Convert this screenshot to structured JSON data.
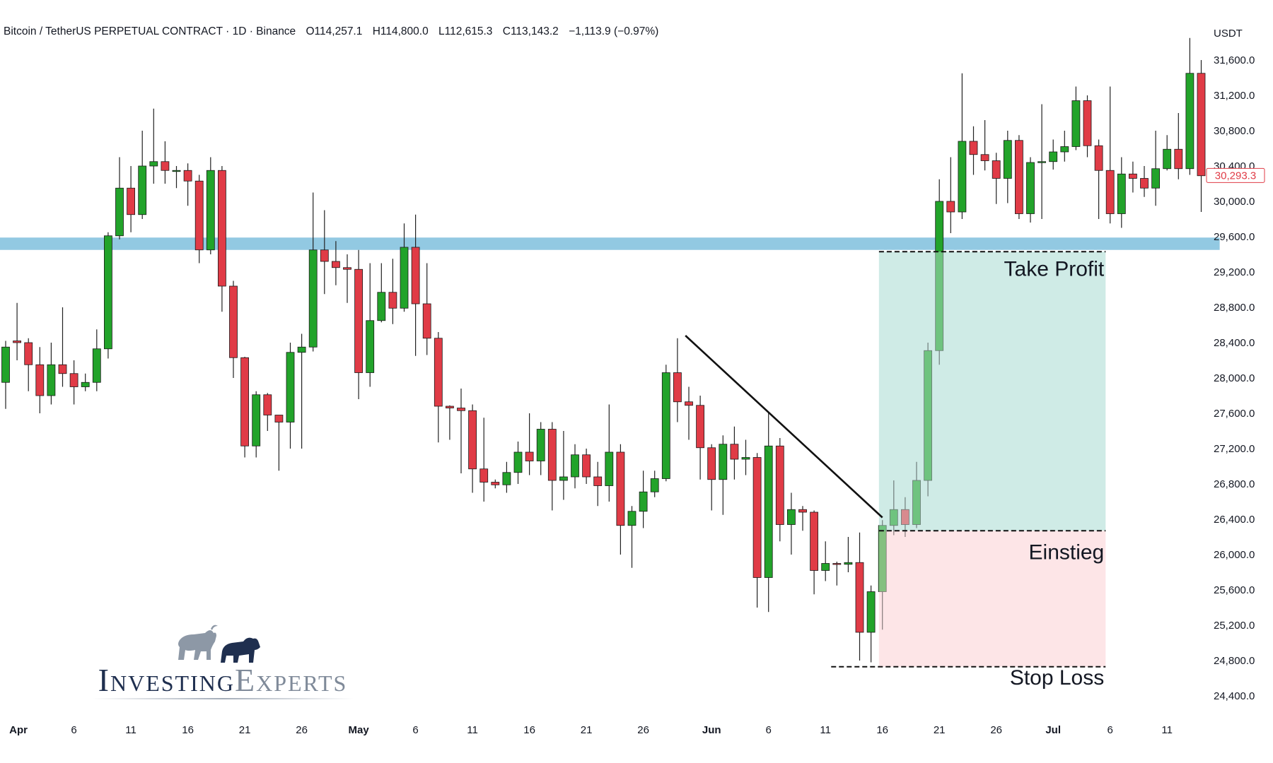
{
  "header": {
    "symbol": "Bitcoin / TetherUS PERPETUAL CONTRACT · 1D · Binance",
    "open": "O114,257.1",
    "high": "H114,800.0",
    "low": "L112,615.3",
    "close": "C113,143.2",
    "change": "−1,113.9 (−0.97%)"
  },
  "logo": {
    "word1": "Investing",
    "word2": "Experts",
    "icon": "bull-and-bear-icon"
  },
  "colors": {
    "up": "#22a32a",
    "down": "#e03b46",
    "support": "#7fc0dd",
    "target": "#cfece6",
    "risk": "#fde5e7",
    "price_label": "#e03b46"
  },
  "chart_data": {
    "type": "candlestick",
    "y_unit": "USDT",
    "ylim": [
      24200,
      31900
    ],
    "y_ticks": [
      "31,600.0",
      "31,200.0",
      "30,800.0",
      "30,400.0",
      "30,000.0",
      "29,600.0",
      "29,200.0",
      "28,800.0",
      "28,400.0",
      "28,000.0",
      "27,600.0",
      "27,200.0",
      "26,800.0",
      "26,400.0",
      "26,000.0",
      "25,600.0",
      "25,200.0",
      "24,800.0",
      "24,400.0"
    ],
    "y_tick_values": [
      31600,
      31200,
      30800,
      30400,
      30000,
      29600,
      29200,
      28800,
      28400,
      28000,
      27600,
      27200,
      26800,
      26400,
      26000,
      25600,
      25200,
      24800,
      24400
    ],
    "x_labels": [
      {
        "label": "Apr",
        "day": 1
      },
      {
        "label": "6",
        "day": 6
      },
      {
        "label": "11",
        "day": 11
      },
      {
        "label": "16",
        "day": 16
      },
      {
        "label": "21",
        "day": 21
      },
      {
        "label": "26",
        "day": 26
      },
      {
        "label": "May",
        "day": 31
      },
      {
        "label": "6",
        "day": 36
      },
      {
        "label": "11",
        "day": 41
      },
      {
        "label": "16",
        "day": 46
      },
      {
        "label": "21",
        "day": 51
      },
      {
        "label": "26",
        "day": 56
      },
      {
        "label": "Jun",
        "day": 62
      },
      {
        "label": "6",
        "day": 67
      },
      {
        "label": "11",
        "day": 72
      },
      {
        "label": "16",
        "day": 77
      },
      {
        "label": "21",
        "day": 82
      },
      {
        "label": "26",
        "day": 87
      },
      {
        "label": "Jul",
        "day": 92
      },
      {
        "label": "6",
        "day": 97
      },
      {
        "label": "11",
        "day": 102
      }
    ],
    "candles": [
      [
        27950,
        28350,
        27650,
        28420
      ],
      [
        28420,
        28400,
        28200,
        28850
      ],
      [
        28400,
        28150,
        27850,
        28450
      ],
      [
        28150,
        27800,
        27600,
        28350
      ],
      [
        27800,
        28150,
        27700,
        28400
      ],
      [
        28150,
        28050,
        27900,
        28800
      ],
      [
        28050,
        27900,
        27700,
        28200
      ],
      [
        27900,
        27950,
        27850,
        28050
      ],
      [
        27950,
        28330,
        27850,
        28550
      ],
      [
        28330,
        29610,
        28220,
        29650
      ],
      [
        29610,
        30150,
        29570,
        30500
      ],
      [
        30150,
        29850,
        29650,
        30400
      ],
      [
        29850,
        30400,
        29800,
        30800
      ],
      [
        30400,
        30450,
        30200,
        31050
      ],
      [
        30450,
        30350,
        30200,
        30680
      ],
      [
        30350,
        30350,
        30150,
        30400
      ],
      [
        30350,
        30230,
        29950,
        30430
      ],
      [
        30230,
        29450,
        29300,
        30300
      ],
      [
        29450,
        30350,
        29400,
        30500
      ],
      [
        30350,
        29040,
        28750,
        30400
      ],
      [
        29040,
        28230,
        28000,
        29100
      ],
      [
        28230,
        27230,
        27100,
        28240
      ],
      [
        27230,
        27810,
        27100,
        27850
      ],
      [
        27810,
        27580,
        27400,
        27830
      ],
      [
        27580,
        27500,
        26950,
        27550
      ],
      [
        27500,
        28290,
        27200,
        28400
      ],
      [
        28290,
        28350,
        27200,
        28500
      ],
      [
        28350,
        29450,
        28300,
        30100
      ],
      [
        29450,
        29320,
        28950,
        29900
      ],
      [
        29320,
        29250,
        29050,
        29550
      ],
      [
        29250,
        29230,
        28850,
        29400
      ],
      [
        29230,
        28060,
        27760,
        29450
      ],
      [
        28060,
        28650,
        27900,
        29300
      ],
      [
        28650,
        28970,
        28630,
        29300
      ],
      [
        28970,
        28790,
        28610,
        29350
      ],
      [
        28790,
        29480,
        28750,
        29750
      ],
      [
        29480,
        28840,
        28250,
        29850
      ],
      [
        28840,
        28450,
        28260,
        29300
      ],
      [
        28450,
        27680,
        27270,
        28520
      ],
      [
        27680,
        27660,
        27300,
        27690
      ],
      [
        27660,
        27630,
        26920,
        27880
      ],
      [
        27630,
        26970,
        26700,
        27700
      ],
      [
        26970,
        26820,
        26600,
        27550
      ],
      [
        26820,
        26790,
        26750,
        26850
      ],
      [
        26790,
        26930,
        26700,
        27050
      ],
      [
        26930,
        27160,
        26800,
        27280
      ],
      [
        27160,
        27060,
        26900,
        27600
      ],
      [
        27060,
        27420,
        26900,
        27500
      ],
      [
        27420,
        26840,
        26500,
        27500
      ],
      [
        26840,
        26880,
        26620,
        27400
      ],
      [
        26880,
        27130,
        26750,
        27250
      ],
      [
        27130,
        26880,
        26800,
        27200
      ],
      [
        26880,
        26780,
        26550,
        27050
      ],
      [
        26780,
        27160,
        26600,
        27700
      ],
      [
        27160,
        26330,
        26000,
        27250
      ],
      [
        26330,
        26490,
        25850,
        26550
      ],
      [
        26490,
        26710,
        26300,
        26950
      ],
      [
        26710,
        26860,
        26650,
        26950
      ],
      [
        26860,
        28060,
        26830,
        28150
      ],
      [
        28060,
        27730,
        27500,
        28450
      ],
      [
        27730,
        27690,
        27300,
        27900
      ],
      [
        27690,
        27210,
        26850,
        27800
      ],
      [
        27210,
        26850,
        26500,
        27250
      ],
      [
        26850,
        27250,
        26450,
        27350
      ],
      [
        27250,
        27080,
        26850,
        27450
      ],
      [
        27080,
        27100,
        26900,
        27300
      ],
      [
        27100,
        25740,
        25400,
        27150
      ],
      [
        25740,
        27230,
        25350,
        27600
      ],
      [
        27230,
        26340,
        26150,
        27320
      ],
      [
        26340,
        26510,
        26000,
        26700
      ],
      [
        26510,
        26480,
        26270,
        26550
      ],
      [
        26480,
        25820,
        25550,
        26500
      ],
      [
        25820,
        25900,
        25700,
        26150
      ],
      [
        25900,
        25890,
        25650,
        25920
      ],
      [
        25890,
        25910,
        25800,
        26200
      ],
      [
        25910,
        25120,
        24800,
        26250
      ],
      [
        25120,
        25580,
        24780,
        25650
      ],
      [
        25580,
        26330,
        25150,
        26390
      ],
      [
        26330,
        26510,
        26220,
        26840
      ],
      [
        26510,
        26340,
        26200,
        26650
      ],
      [
        26340,
        26840,
        26300,
        27050
      ],
      [
        26840,
        28310,
        26660,
        28400
      ],
      [
        28310,
        30000,
        28150,
        30250
      ],
      [
        30000,
        29880,
        29640,
        30500
      ],
      [
        29880,
        30680,
        29800,
        31450
      ],
      [
        30680,
        30530,
        30300,
        30850
      ],
      [
        30530,
        30460,
        30350,
        30920
      ],
      [
        30460,
        30260,
        29970,
        30550
      ],
      [
        30260,
        30690,
        29980,
        30800
      ],
      [
        30690,
        29860,
        29800,
        30750
      ],
      [
        29860,
        30440,
        29760,
        30500
      ],
      [
        30440,
        30450,
        29800,
        31100
      ],
      [
        30450,
        30560,
        30360,
        30700
      ],
      [
        30560,
        30620,
        30450,
        30800
      ],
      [
        30620,
        31140,
        30580,
        31300
      ],
      [
        31140,
        30630,
        30500,
        31200
      ],
      [
        30630,
        30350,
        29800,
        30700
      ],
      [
        30350,
        29860,
        29750,
        31300
      ],
      [
        29860,
        30310,
        29700,
        30500
      ],
      [
        30310,
        30260,
        30100,
        30450
      ],
      [
        30260,
        30150,
        30050,
        30400
      ],
      [
        30150,
        30370,
        29950,
        30800
      ],
      [
        30370,
        30590,
        30350,
        30750
      ],
      [
        30590,
        30370,
        30250,
        31000
      ],
      [
        30370,
        31450,
        30300,
        31850
      ],
      [
        31450,
        30290,
        29880,
        31600
      ]
    ],
    "current_price": {
      "label": "30,293.3",
      "value": 30293.3
    },
    "support_zone": {
      "from": 29450,
      "to": 29590,
      "start_day": 0,
      "end_day": 106
    },
    "trendline": {
      "from": [
        59.7,
        28480
      ],
      "to": [
        77,
        26420
      ]
    },
    "position": {
      "start_day": 76.7,
      "end_day": 96.6,
      "take_profit": 29430,
      "entry": 26270,
      "stop_loss": 24730,
      "tp_line_start_day": 76.7,
      "entry_line_start_day": 76.7,
      "sl_line_start_day": 72.5,
      "labels": {
        "take_profit": "Take Profit",
        "entry": "Einstieg",
        "stop_loss": "Stop Loss"
      }
    }
  }
}
